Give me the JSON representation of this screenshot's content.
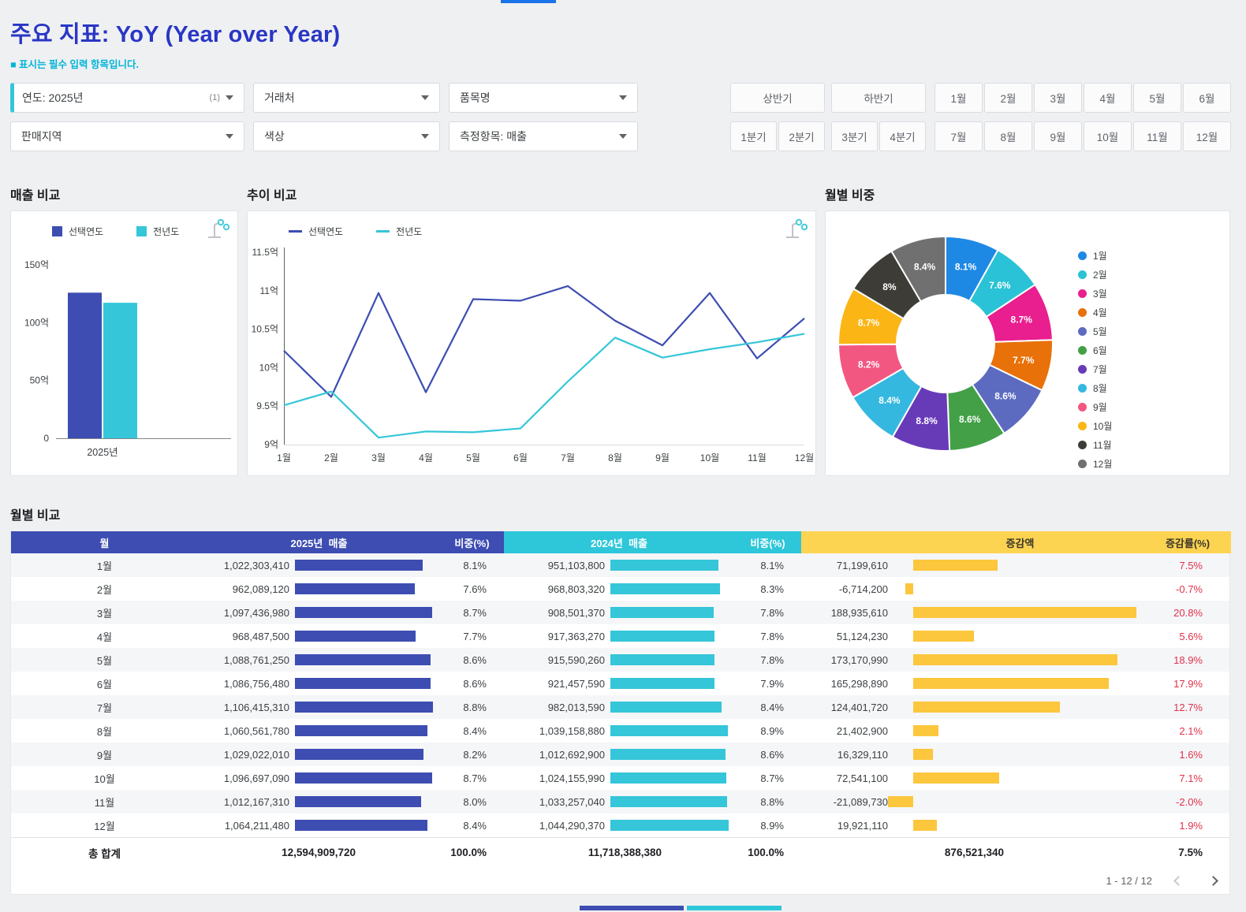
{
  "page": {
    "title": "주요 지표: YoY (Year over Year)",
    "required_note": "■ 표시는 필수 입력 항목입니다.",
    "accent_blue": "#2936c5",
    "accent_cyan": "#00b5d8"
  },
  "filters": {
    "year": {
      "label": "연도: 2025년",
      "badge": "(1)"
    },
    "client": {
      "label": "거래처"
    },
    "item": {
      "label": "품목명"
    },
    "region": {
      "label": "판매지역"
    },
    "color": {
      "label": "색상"
    },
    "measure": {
      "label": "측정항목: 매출"
    }
  },
  "period_buttons": {
    "halves": [
      "상반기",
      "하반기"
    ],
    "quarters": [
      "1분기",
      "2분기",
      "3분기",
      "4분기"
    ],
    "months_first_half": [
      "1월",
      "2월",
      "3월",
      "4월",
      "5월",
      "6월"
    ],
    "months_second_half": [
      "7월",
      "8월",
      "9월",
      "10월",
      "11월",
      "12월"
    ]
  },
  "chart_data": [
    {
      "type": "bar",
      "title": "매출 비교",
      "categories": [
        "2025년"
      ],
      "series": [
        {
          "name": "선택연도",
          "values": [
            125.9
          ],
          "color": "#3d4db2"
        },
        {
          "name": "전년도",
          "values": [
            117.2
          ],
          "color": "#35c6d9"
        }
      ],
      "unit": "억",
      "yticks": [
        0,
        50,
        100,
        150
      ],
      "ytick_labels": [
        "0",
        "50억",
        "100억",
        "150억"
      ],
      "ylim": [
        0,
        150
      ],
      "legend_position": "top"
    },
    {
      "type": "line",
      "title": "추이 비교",
      "categories": [
        "1월",
        "2월",
        "3월",
        "4월",
        "5월",
        "6월",
        "7월",
        "8월",
        "9월",
        "10월",
        "11월",
        "12월"
      ],
      "series": [
        {
          "name": "선택연도",
          "values": [
            10.22,
            9.62,
            10.97,
            9.68,
            10.89,
            10.87,
            11.06,
            10.61,
            10.29,
            10.97,
            10.12,
            10.64
          ],
          "color": "#3d4db2"
        },
        {
          "name": "전년도",
          "values": [
            9.51,
            9.69,
            9.09,
            9.17,
            9.16,
            9.21,
            9.82,
            10.39,
            10.13,
            10.24,
            10.33,
            10.44
          ],
          "color": "#35c6d9"
        }
      ],
      "unit": "억",
      "yticks": [
        9,
        9.5,
        10,
        10.5,
        11,
        11.5
      ],
      "ytick_labels": [
        "9억",
        "9.5억",
        "10억",
        "10.5억",
        "11억",
        "11.5억"
      ],
      "ylim": [
        9,
        11.5
      ],
      "legend_position": "top"
    },
    {
      "type": "pie",
      "title": "월별 비중",
      "donut": true,
      "categories": [
        "1월",
        "2월",
        "3월",
        "4월",
        "5월",
        "6월",
        "7월",
        "8월",
        "9월",
        "10월",
        "11월",
        "12월"
      ],
      "values": [
        8.1,
        7.6,
        8.7,
        7.7,
        8.6,
        8.6,
        8.8,
        8.4,
        8.2,
        8.7,
        8.0,
        8.4
      ],
      "slice_labels": [
        "8.1%",
        "7.6%",
        "8.7%",
        "7.7%",
        "8.6%",
        "8.6%",
        "8.8%",
        "8.4%",
        "8.2%",
        "8.7%",
        "8%",
        "8.4%"
      ],
      "colors": [
        "#1e88e5",
        "#29c2d6",
        "#e91e8f",
        "#e8710a",
        "#5c6bc0",
        "#43a047",
        "#673ab7",
        "#35b8e0",
        "#f25781",
        "#fbb615",
        "#3e3c36",
        "#707070"
      ],
      "legend_position": "right"
    }
  ],
  "table": {
    "title": "월별 비교",
    "headers": {
      "month": "월",
      "sales_2025": "2025년  매출",
      "share_2025": "비중(%)",
      "sales_2024": "2024년  매출",
      "share_2024": "비중(%)",
      "diff": "증감액",
      "rate": "증감률(%)"
    },
    "header_colors": {
      "group1": "#3d4db2",
      "group2": "#2ec7d9",
      "group3": "#fdd452"
    },
    "bar_colors": {
      "sales_2025": "#3d4db2",
      "sales_2024": "#35c6d9",
      "diff": "#fcc63d"
    },
    "rate_color": "#e0314b",
    "rows": [
      {
        "month": "1월",
        "s25": 1022303410,
        "p25": "8.1%",
        "s24": 951103800,
        "p24": "8.1%",
        "diff": 71199610,
        "rate": "7.5%"
      },
      {
        "month": "2월",
        "s25": 962089120,
        "p25": "7.6%",
        "s24": 968803320,
        "p24": "8.3%",
        "diff": -6714200,
        "rate": "-0.7%"
      },
      {
        "month": "3월",
        "s25": 1097436980,
        "p25": "8.7%",
        "s24": 908501370,
        "p24": "7.8%",
        "diff": 188935610,
        "rate": "20.8%"
      },
      {
        "month": "4월",
        "s25": 968487500,
        "p25": "7.7%",
        "s24": 917363270,
        "p24": "7.8%",
        "diff": 51124230,
        "rate": "5.6%"
      },
      {
        "month": "5월",
        "s25": 1088761250,
        "p25": "8.6%",
        "s24": 915590260,
        "p24": "7.8%",
        "diff": 173170990,
        "rate": "18.9%"
      },
      {
        "month": "6월",
        "s25": 1086756480,
        "p25": "8.6%",
        "s24": 921457590,
        "p24": "7.9%",
        "diff": 165298890,
        "rate": "17.9%"
      },
      {
        "month": "7월",
        "s25": 1106415310,
        "p25": "8.8%",
        "s24": 982013590,
        "p24": "8.4%",
        "diff": 124401720,
        "rate": "12.7%"
      },
      {
        "month": "8월",
        "s25": 1060561780,
        "p25": "8.4%",
        "s24": 1039158880,
        "p24": "8.9%",
        "diff": 21402900,
        "rate": "2.1%"
      },
      {
        "month": "9월",
        "s25": 1029022010,
        "p25": "8.2%",
        "s24": 1012692900,
        "p24": "8.6%",
        "diff": 16329110,
        "rate": "1.6%"
      },
      {
        "month": "10월",
        "s25": 1096697090,
        "p25": "8.7%",
        "s24": 1024155990,
        "p24": "8.7%",
        "diff": 72541100,
        "rate": "7.1%"
      },
      {
        "month": "11월",
        "s25": 1012167310,
        "p25": "8.0%",
        "s24": 1033257040,
        "p24": "8.8%",
        "diff": -21089730,
        "rate": "-2.0%"
      },
      {
        "month": "12월",
        "s25": 1064211480,
        "p25": "8.4%",
        "s24": 1044290370,
        "p24": "8.9%",
        "diff": 19921110,
        "rate": "1.9%"
      }
    ],
    "total": {
      "label": "총 합계",
      "sales_2025": "12,594,909,720",
      "share_2025": "100.0%",
      "sales_2024": "11,718,388,380",
      "share_2024": "100.0%",
      "diff": "876,521,340",
      "rate": "7.5%"
    },
    "pagination": "1 - 12 / 12"
  }
}
